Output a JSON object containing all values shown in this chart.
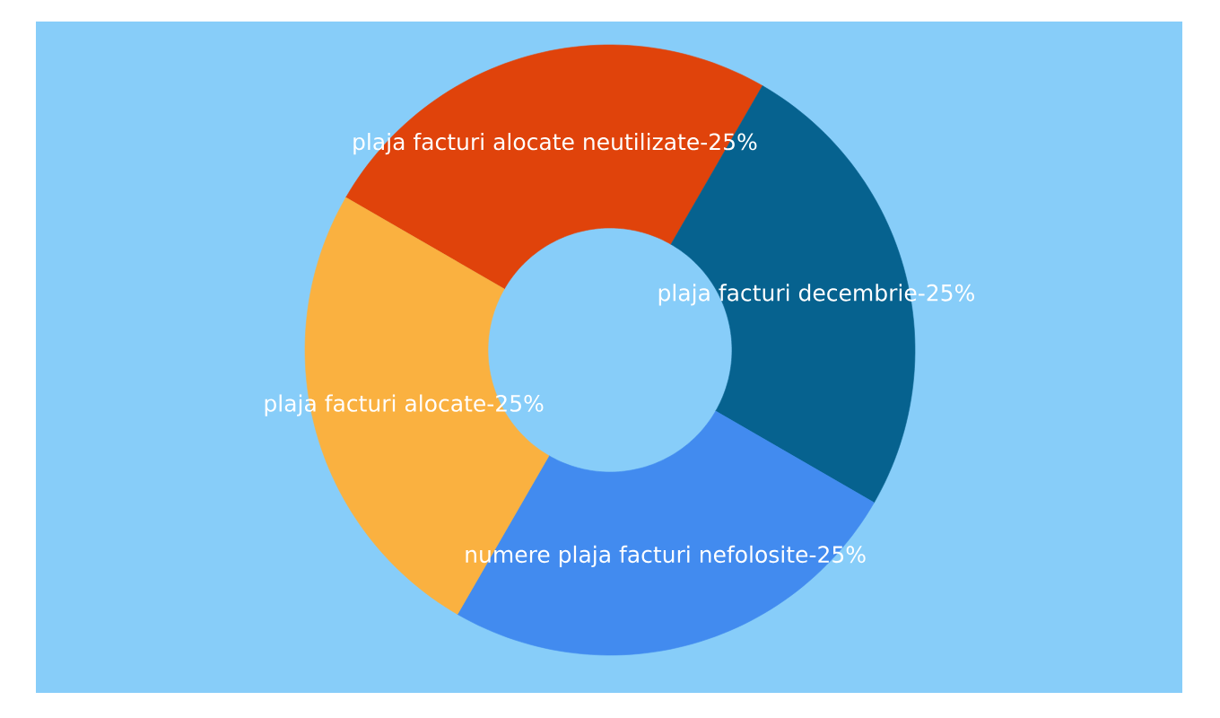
{
  "chart_data": {
    "type": "donut",
    "categories": [
      "plaja facturi alocate neutilizate-25%",
      "plaja facturi decembrie-25%",
      "numere plaja facturi nefolosite-25%",
      "plaja facturi alocate-25%"
    ],
    "values": [
      25,
      25,
      25,
      25
    ],
    "colors": [
      "#e0430b",
      "#06628f",
      "#428bef",
      "#fab140"
    ]
  }
}
